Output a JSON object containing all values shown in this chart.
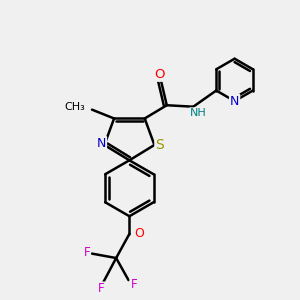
{
  "bg_color": "#f0f0f0",
  "bond_color": "#000000",
  "bond_width": 1.8,
  "dbo": 0.07,
  "atom_colors": {
    "N": "#0000cc",
    "O": "#ff0000",
    "S": "#999900",
    "F": "#cc00cc",
    "C": "#000000",
    "H": "#008080"
  },
  "font_size": 8.5,
  "fig_size": [
    3.0,
    3.0
  ],
  "dpi": 100
}
